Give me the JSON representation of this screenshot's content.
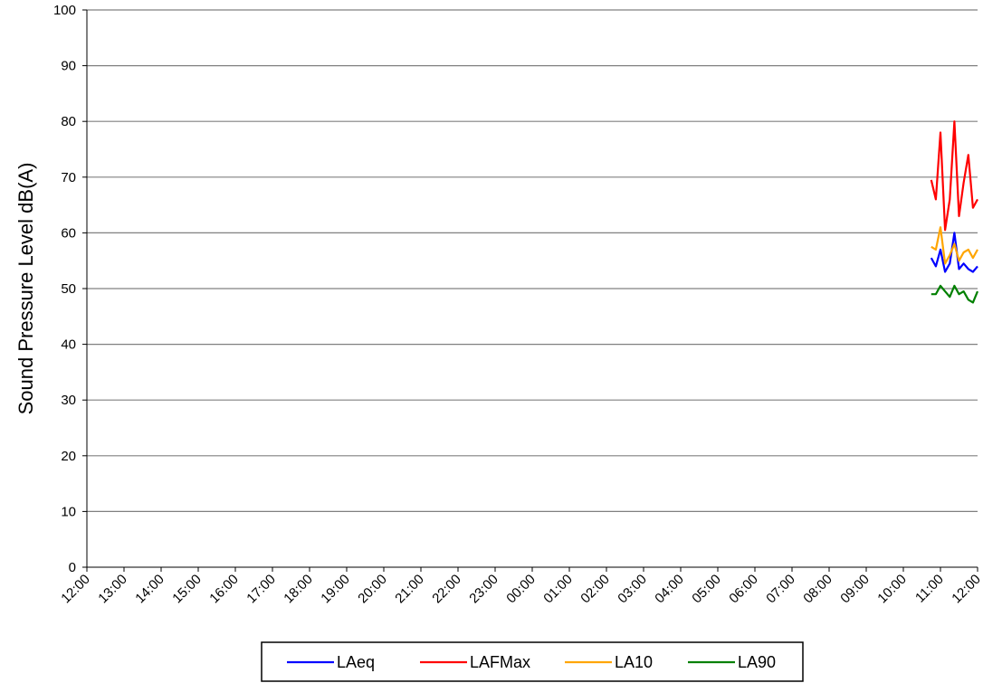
{
  "chart_data": {
    "type": "line",
    "title": "",
    "xlabel": "",
    "ylabel": "Sound Pressure Level dB(A)",
    "ylim": [
      0,
      100
    ],
    "yticks": [
      "0",
      "10",
      "20",
      "30",
      "40",
      "50",
      "60",
      "70",
      "80",
      "90",
      "100"
    ],
    "xticks": [
      "12:00",
      "13:00",
      "14:00",
      "15:00",
      "16:00",
      "17:00",
      "18:00",
      "19:00",
      "20:00",
      "21:00",
      "22:00",
      "23:00",
      "00:00",
      "01:00",
      "02:00",
      "03:00",
      "04:00",
      "05:00",
      "06:00",
      "07:00",
      "08:00",
      "09:00",
      "10:00",
      "11:00",
      "12:00"
    ],
    "grid": "horizontal",
    "legend_position": "bottom",
    "x_hours": [
      22.75,
      22.875,
      23.0,
      23.125,
      23.25,
      23.375,
      23.5,
      23.625,
      23.75,
      23.875,
      24.0
    ],
    "series": [
      {
        "name": "LAeq",
        "color": "#0000ff",
        "values": [
          55.5,
          54.0,
          57.0,
          53.0,
          54.5,
          60.0,
          53.5,
          54.5,
          53.5,
          53.0,
          54.0
        ]
      },
      {
        "name": "LAFMax",
        "color": "#ff0000",
        "values": [
          69.5,
          66.0,
          78.0,
          60.5,
          66.0,
          80.0,
          63.0,
          69.0,
          74.0,
          64.5,
          66.0
        ]
      },
      {
        "name": "LA10",
        "color": "#ffa500",
        "values": [
          57.5,
          57.0,
          61.0,
          54.5,
          56.0,
          58.0,
          55.0,
          56.5,
          57.0,
          55.5,
          57.0
        ]
      },
      {
        "name": "LA90",
        "color": "#008000",
        "values": [
          49.0,
          49.0,
          50.5,
          49.5,
          48.5,
          50.5,
          49.0,
          49.5,
          48.0,
          47.5,
          49.5
        ]
      }
    ]
  }
}
